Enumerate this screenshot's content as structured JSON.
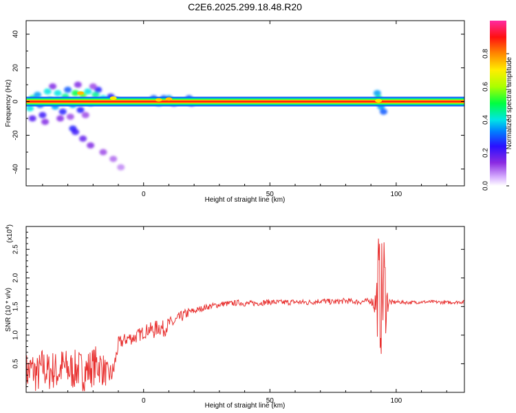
{
  "figure": {
    "title": "C2E6.2025.299.18.48.R20"
  },
  "chart_data": [
    {
      "type": "heatmap",
      "title": "",
      "xlabel": "Height of straight line (km)",
      "ylabel": "Frequency (Hz)",
      "xlim": [
        -46.5,
        127
      ],
      "ylim": [
        -50,
        48
      ],
      "x_ticks": [
        "0",
        "50",
        "100"
      ],
      "y_ticks": [
        "40",
        "20",
        "0",
        "-20",
        "-40"
      ],
      "x_tick_values": [
        0,
        50,
        100
      ],
      "y_tick_values": [
        40,
        20,
        0,
        -20,
        -40
      ],
      "colorbar": {
        "label": "Normalized spectral amplitude",
        "range": [
          0,
          1
        ],
        "ticks": [
          "0.0",
          "0.2",
          "0.4",
          "0.6",
          "0.8"
        ],
        "tick_values": [
          0,
          0.2,
          0.4,
          0.6,
          0.8
        ],
        "colormap": [
          "#ffffff",
          "#8b2be2",
          "#3c10ff",
          "#0060ff",
          "#00e5e5",
          "#00ff40",
          "#aaff00",
          "#ffee00",
          "#ff8800",
          "#ff1010",
          "#ff2aa0"
        ]
      },
      "main_band": {
        "x_start": -46.5,
        "x_end": 127,
        "freq": 0,
        "amplitude": 0.88
      },
      "blobs": [
        {
          "x": -45,
          "y": -4,
          "v": 0.4
        },
        {
          "x": -44,
          "y": 2,
          "v": 0.45
        },
        {
          "x": -44,
          "y": -10,
          "v": 0.2
        },
        {
          "x": -42,
          "y": 4,
          "v": 0.35
        },
        {
          "x": -41,
          "y": -2,
          "v": 0.3
        },
        {
          "x": -40,
          "y": -8,
          "v": 0.22
        },
        {
          "x": -38,
          "y": 6,
          "v": 0.4
        },
        {
          "x": -37,
          "y": 1,
          "v": 0.45
        },
        {
          "x": -35,
          "y": -3,
          "v": 0.35
        },
        {
          "x": -34,
          "y": 5,
          "v": 0.4
        },
        {
          "x": -32,
          "y": -6,
          "v": 0.25
        },
        {
          "x": -31,
          "y": 3,
          "v": 0.45
        },
        {
          "x": -30,
          "y": 7,
          "v": 0.3
        },
        {
          "x": -28,
          "y": -2,
          "v": 0.35
        },
        {
          "x": -27,
          "y": 5,
          "v": 0.5
        },
        {
          "x": -25,
          "y": -5,
          "v": 0.25
        },
        {
          "x": -24,
          "y": 4,
          "v": 0.55
        },
        {
          "x": -22,
          "y": 6,
          "v": 0.4
        },
        {
          "x": -21,
          "y": -1,
          "v": 0.35
        },
        {
          "x": -19,
          "y": 4,
          "v": 0.45
        },
        {
          "x": -18,
          "y": 7,
          "v": 0.25
        },
        {
          "x": -16,
          "y": 2,
          "v": 0.4
        },
        {
          "x": -14,
          "y": 1,
          "v": 0.35
        },
        {
          "x": -13,
          "y": 3,
          "v": 0.25
        },
        {
          "x": -11,
          "y": 1,
          "v": 0.3
        },
        {
          "x": -36,
          "y": 9,
          "v": 0.15
        },
        {
          "x": -26,
          "y": 10,
          "v": 0.15
        },
        {
          "x": -20,
          "y": 9,
          "v": 0.12
        },
        {
          "x": -39,
          "y": -12,
          "v": 0.15
        },
        {
          "x": -33,
          "y": -10,
          "v": 0.15
        },
        {
          "x": -29,
          "y": -9,
          "v": 0.12
        },
        {
          "x": -23,
          "y": -8,
          "v": 0.12
        },
        {
          "x": -28,
          "y": -16,
          "v": 0.25
        },
        {
          "x": -27,
          "y": -18,
          "v": 0.22
        },
        {
          "x": -24,
          "y": -22,
          "v": 0.18
        },
        {
          "x": -21,
          "y": -26,
          "v": 0.15
        },
        {
          "x": -16,
          "y": -30,
          "v": 0.12
        },
        {
          "x": -12,
          "y": -34,
          "v": 0.1
        },
        {
          "x": -9,
          "y": -39,
          "v": 0.08
        },
        {
          "x": 4,
          "y": 2,
          "v": 0.3
        },
        {
          "x": 6,
          "y": -1,
          "v": 0.35
        },
        {
          "x": 8,
          "y": 2,
          "v": 0.3
        },
        {
          "x": 10,
          "y": 2,
          "v": 0.35
        },
        {
          "x": 12,
          "y": -1,
          "v": 0.25
        },
        {
          "x": 18,
          "y": 2,
          "v": 0.3
        },
        {
          "x": 19,
          "y": -1,
          "v": 0.25
        },
        {
          "x": 92.5,
          "y": 5,
          "v": 0.35
        },
        {
          "x": 93,
          "y": 2,
          "v": 0.45
        },
        {
          "x": 94,
          "y": -3,
          "v": 0.35
        },
        {
          "x": 95,
          "y": -6,
          "v": 0.3
        },
        {
          "x": 93.5,
          "y": 0,
          "v": 0.5
        }
      ],
      "hotspots": [
        {
          "x": -25,
          "y": 5,
          "v": 0.75
        },
        {
          "x": -12,
          "y": 2,
          "v": 0.7
        },
        {
          "x": 6,
          "y": 1,
          "v": 0.72
        },
        {
          "x": 10,
          "y": 1.5,
          "v": 0.74
        },
        {
          "x": 93,
          "y": 0.5,
          "v": 0.7
        }
      ]
    },
    {
      "type": "line",
      "title": "",
      "xlabel": "Height of straight line (km)",
      "ylabel": "SNR (10 * v/v)",
      "y_multiplier_label": "(x10",
      "y_multiplier_exp": "4",
      "xlim": [
        -46.5,
        127
      ],
      "ylim": [
        0,
        2.9
      ],
      "x_ticks": [
        "0",
        "50",
        "100"
      ],
      "y_ticks": [
        "0.5",
        "1.0",
        "1.5",
        "2.0",
        "2.5"
      ],
      "x_tick_values": [
        0,
        50,
        100
      ],
      "y_tick_values": [
        0.5,
        1.0,
        1.5,
        2.0,
        2.5
      ],
      "series": [
        {
          "color": "#e8302f",
          "x": [
            -46,
            -44,
            -42,
            -40,
            -38,
            -36,
            -34,
            -32,
            -30,
            -28,
            -26,
            -24,
            -22,
            -20,
            -18,
            -16,
            -14,
            -12,
            -10,
            -8,
            -6,
            -4,
            -2,
            0,
            2,
            4,
            6,
            8,
            10,
            12,
            14,
            16,
            18,
            20,
            22,
            24,
            26,
            28,
            30,
            32,
            34,
            36,
            38,
            40,
            45,
            50,
            55,
            60,
            65,
            70,
            75,
            80,
            85,
            90,
            92,
            93,
            94,
            95,
            96,
            97,
            98,
            100,
            105,
            110,
            115,
            120,
            125,
            127
          ],
          "y": [
            0.35,
            0.4,
            0.3,
            0.45,
            0.35,
            0.4,
            0.35,
            0.45,
            0.4,
            0.38,
            0.42,
            0.35,
            0.4,
            0.45,
            0.5,
            0.4,
            0.3,
            0.35,
            0.85,
            0.9,
            0.95,
            0.95,
            1.0,
            1.05,
            1.1,
            1.08,
            1.15,
            1.1,
            1.2,
            1.22,
            1.3,
            1.35,
            1.4,
            1.42,
            1.45,
            1.48,
            1.5,
            1.52,
            1.53,
            1.55,
            1.55,
            1.56,
            1.57,
            1.55,
            1.56,
            1.58,
            1.57,
            1.58,
            1.57,
            1.6,
            1.58,
            1.6,
            1.58,
            1.6,
            1.55,
            1.8,
            1.5,
            1.9,
            1.6,
            1.58,
            1.57,
            1.58,
            1.57,
            1.58,
            1.58,
            1.57,
            1.58,
            1.58
          ],
          "noise_amplitude": [
            0.35,
            0.35,
            0.35,
            0.35,
            0.35,
            0.35,
            0.35,
            0.35,
            0.35,
            0.35,
            0.35,
            0.35,
            0.35,
            0.35,
            0.35,
            0.3,
            0.2,
            0.2,
            0.12,
            0.12,
            0.12,
            0.12,
            0.12,
            0.12,
            0.12,
            0.15,
            0.15,
            0.15,
            0.12,
            0.12,
            0.1,
            0.1,
            0.08,
            0.06,
            0.05,
            0.05,
            0.05,
            0.05,
            0.05,
            0.05,
            0.05,
            0.05,
            0.05,
            0.05,
            0.05,
            0.05,
            0.05,
            0.05,
            0.05,
            0.05,
            0.05,
            0.05,
            0.05,
            0.05,
            0.3,
            1.1,
            0.9,
            1.3,
            0.5,
            0.1,
            0.05,
            0.03,
            0.03,
            0.03,
            0.03,
            0.03,
            0.03,
            0.03
          ]
        }
      ]
    }
  ]
}
